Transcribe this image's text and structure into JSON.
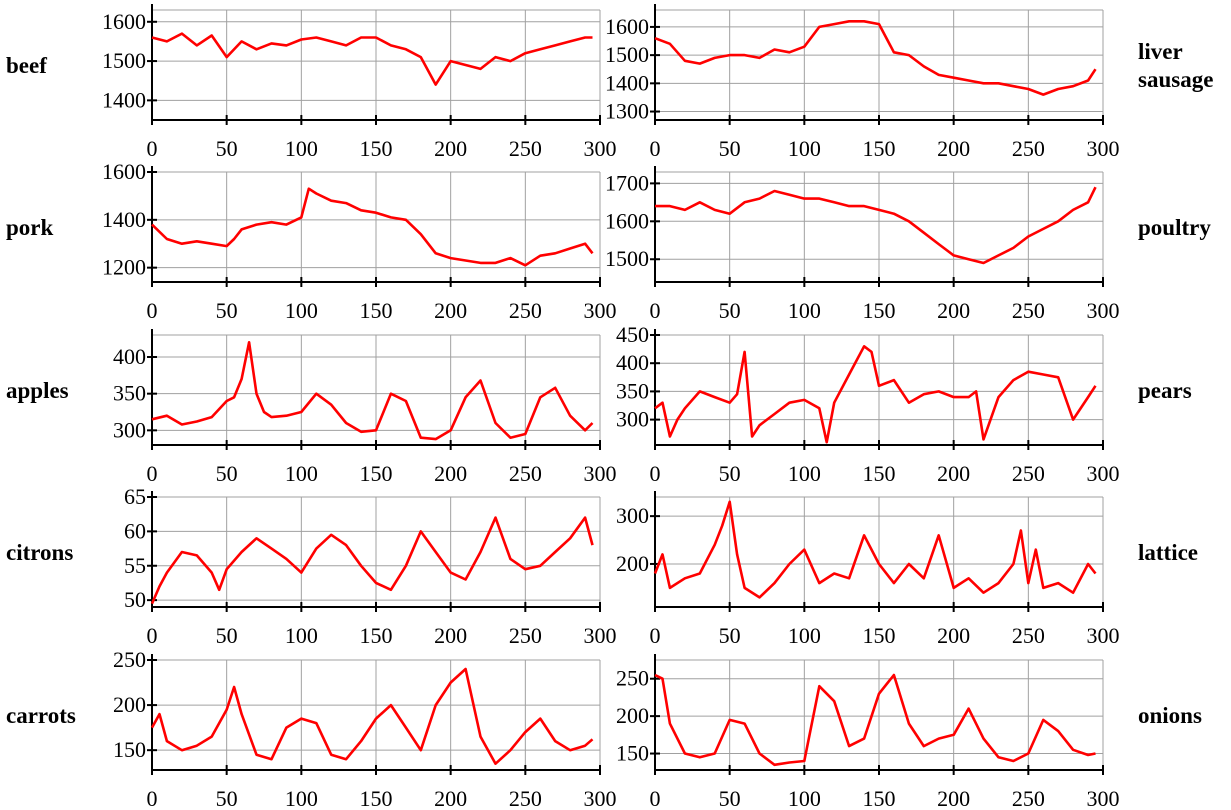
{
  "chart_data": [
    {
      "type": "line",
      "label": "beef",
      "xlim": [
        0,
        300
      ],
      "ylim": [
        1350,
        1630
      ],
      "xticks": [
        0,
        50,
        100,
        150,
        200,
        250,
        300
      ],
      "yticks": [
        1400,
        1500,
        1600
      ],
      "x": [
        0,
        10,
        20,
        30,
        40,
        50,
        60,
        70,
        80,
        90,
        100,
        110,
        120,
        130,
        140,
        150,
        160,
        170,
        180,
        190,
        200,
        210,
        220,
        230,
        240,
        250,
        260,
        270,
        280,
        290,
        295
      ],
      "y": [
        1560,
        1550,
        1570,
        1540,
        1565,
        1510,
        1550,
        1530,
        1545,
        1540,
        1555,
        1560,
        1550,
        1540,
        1560,
        1560,
        1540,
        1530,
        1510,
        1440,
        1500,
        1490,
        1480,
        1510,
        1500,
        1520,
        1530,
        1540,
        1550,
        1560,
        1560
      ]
    },
    {
      "type": "line",
      "label": "liver sausage",
      "xlim": [
        0,
        300
      ],
      "ylim": [
        1270,
        1660
      ],
      "xticks": [
        0,
        50,
        100,
        150,
        200,
        250,
        300
      ],
      "yticks": [
        1300,
        1400,
        1500,
        1600
      ],
      "x": [
        0,
        10,
        20,
        30,
        40,
        50,
        60,
        70,
        80,
        90,
        100,
        110,
        120,
        130,
        140,
        150,
        160,
        170,
        180,
        190,
        200,
        210,
        220,
        230,
        240,
        250,
        260,
        270,
        280,
        290,
        295
      ],
      "y": [
        1560,
        1540,
        1480,
        1470,
        1490,
        1500,
        1500,
        1490,
        1520,
        1510,
        1530,
        1600,
        1610,
        1620,
        1620,
        1610,
        1510,
        1500,
        1460,
        1430,
        1420,
        1410,
        1400,
        1400,
        1390,
        1380,
        1360,
        1380,
        1390,
        1410,
        1450
      ]
    },
    {
      "type": "line",
      "label": "pork",
      "xlim": [
        0,
        300
      ],
      "ylim": [
        1140,
        1600
      ],
      "xticks": [
        0,
        50,
        100,
        150,
        200,
        250,
        300
      ],
      "yticks": [
        1200,
        1400,
        1600
      ],
      "x": [
        0,
        10,
        20,
        30,
        40,
        50,
        55,
        60,
        70,
        80,
        90,
        100,
        105,
        110,
        120,
        130,
        140,
        150,
        160,
        170,
        180,
        190,
        200,
        210,
        220,
        230,
        240,
        250,
        260,
        270,
        280,
        290,
        295
      ],
      "y": [
        1380,
        1320,
        1300,
        1310,
        1300,
        1290,
        1320,
        1360,
        1380,
        1390,
        1380,
        1410,
        1530,
        1510,
        1480,
        1470,
        1440,
        1430,
        1410,
        1400,
        1340,
        1260,
        1240,
        1230,
        1220,
        1220,
        1240,
        1210,
        1250,
        1260,
        1280,
        1300,
        1260
      ]
    },
    {
      "type": "line",
      "label": "poultry",
      "xlim": [
        0,
        300
      ],
      "ylim": [
        1440,
        1730
      ],
      "xticks": [
        0,
        50,
        100,
        150,
        200,
        250,
        300
      ],
      "yticks": [
        1500,
        1600,
        1700
      ],
      "x": [
        0,
        10,
        20,
        30,
        40,
        50,
        60,
        70,
        80,
        90,
        100,
        110,
        120,
        130,
        140,
        150,
        160,
        170,
        180,
        190,
        200,
        210,
        220,
        230,
        240,
        250,
        260,
        270,
        280,
        290,
        295
      ],
      "y": [
        1640,
        1640,
        1630,
        1650,
        1630,
        1620,
        1650,
        1660,
        1680,
        1670,
        1660,
        1660,
        1650,
        1640,
        1640,
        1630,
        1620,
        1600,
        1570,
        1540,
        1510,
        1500,
        1490,
        1510,
        1530,
        1560,
        1580,
        1600,
        1630,
        1650,
        1690
      ]
    },
    {
      "type": "line",
      "label": "apples",
      "xlim": [
        0,
        300
      ],
      "ylim": [
        280,
        430
      ],
      "xticks": [
        0,
        50,
        100,
        150,
        200,
        250,
        300
      ],
      "yticks": [
        300,
        350,
        400
      ],
      "x": [
        0,
        10,
        20,
        30,
        40,
        50,
        55,
        60,
        65,
        70,
        75,
        80,
        90,
        100,
        110,
        120,
        130,
        140,
        150,
        160,
        170,
        180,
        190,
        200,
        210,
        220,
        230,
        240,
        250,
        260,
        270,
        280,
        290,
        295
      ],
      "y": [
        315,
        320,
        308,
        312,
        318,
        340,
        345,
        370,
        420,
        350,
        325,
        318,
        320,
        325,
        350,
        335,
        310,
        298,
        300,
        350,
        340,
        290,
        288,
        300,
        345,
        368,
        310,
        290,
        295,
        345,
        358,
        320,
        300,
        310
      ]
    },
    {
      "type": "line",
      "label": "pears",
      "xlim": [
        0,
        300
      ],
      "ylim": [
        255,
        450
      ],
      "xticks": [
        0,
        50,
        100,
        150,
        200,
        250,
        300
      ],
      "yticks": [
        300,
        350,
        400,
        450
      ],
      "x": [
        0,
        5,
        10,
        15,
        20,
        30,
        40,
        50,
        55,
        60,
        65,
        70,
        80,
        90,
        100,
        110,
        115,
        120,
        130,
        140,
        145,
        150,
        160,
        170,
        180,
        190,
        200,
        210,
        215,
        220,
        230,
        240,
        250,
        260,
        270,
        280,
        290,
        295
      ],
      "y": [
        320,
        330,
        270,
        300,
        320,
        350,
        340,
        330,
        345,
        420,
        270,
        290,
        310,
        330,
        335,
        320,
        260,
        330,
        380,
        430,
        420,
        360,
        370,
        330,
        345,
        350,
        340,
        340,
        350,
        265,
        340,
        370,
        385,
        380,
        375,
        300,
        340,
        360
      ]
    },
    {
      "type": "line",
      "label": "citrons",
      "xlim": [
        0,
        300
      ],
      "ylim": [
        49,
        65
      ],
      "xticks": [
        0,
        50,
        100,
        150,
        200,
        250,
        300
      ],
      "yticks": [
        50,
        55,
        60,
        65
      ],
      "x": [
        0,
        5,
        10,
        20,
        30,
        40,
        45,
        50,
        60,
        70,
        80,
        90,
        100,
        110,
        120,
        130,
        140,
        150,
        160,
        170,
        180,
        190,
        200,
        210,
        220,
        230,
        240,
        250,
        260,
        270,
        280,
        290,
        295
      ],
      "y": [
        49.5,
        52,
        54,
        57,
        56.5,
        54,
        51.5,
        54.5,
        57,
        59,
        57.5,
        56,
        54,
        57.5,
        59.5,
        58,
        55,
        52.5,
        51.5,
        55,
        60,
        57,
        54,
        53,
        57,
        62,
        56,
        54.5,
        55,
        57,
        59,
        62,
        58
      ]
    },
    {
      "type": "line",
      "label": "lattice",
      "xlim": [
        0,
        300
      ],
      "ylim": [
        110,
        340
      ],
      "xticks": [
        0,
        50,
        100,
        150,
        200,
        250,
        300
      ],
      "yticks": [
        200,
        300
      ],
      "x": [
        0,
        5,
        10,
        20,
        30,
        40,
        45,
        50,
        55,
        60,
        70,
        80,
        90,
        100,
        110,
        120,
        130,
        140,
        150,
        160,
        170,
        180,
        190,
        200,
        210,
        220,
        230,
        240,
        245,
        250,
        255,
        260,
        270,
        280,
        290,
        295
      ],
      "y": [
        180,
        220,
        150,
        170,
        180,
        240,
        280,
        330,
        220,
        150,
        130,
        160,
        200,
        230,
        160,
        180,
        170,
        260,
        200,
        160,
        200,
        170,
        260,
        150,
        170,
        140,
        160,
        200,
        270,
        160,
        230,
        150,
        160,
        140,
        200,
        180
      ]
    },
    {
      "type": "line",
      "label": "carrots",
      "xlim": [
        0,
        300
      ],
      "ylim": [
        128,
        250
      ],
      "xticks": [
        0,
        50,
        100,
        150,
        200,
        250,
        300
      ],
      "yticks": [
        150,
        200,
        250
      ],
      "x": [
        0,
        5,
        10,
        20,
        30,
        40,
        50,
        55,
        60,
        70,
        80,
        90,
        100,
        110,
        120,
        130,
        140,
        150,
        160,
        170,
        180,
        190,
        200,
        210,
        220,
        230,
        240,
        250,
        260,
        270,
        280,
        290,
        295
      ],
      "y": [
        175,
        190,
        160,
        150,
        155,
        165,
        195,
        220,
        190,
        145,
        140,
        175,
        185,
        180,
        145,
        140,
        160,
        185,
        200,
        175,
        150,
        200,
        225,
        240,
        165,
        135,
        150,
        170,
        185,
        160,
        150,
        155,
        162
      ]
    },
    {
      "type": "line",
      "label": "onions",
      "xlim": [
        0,
        300
      ],
      "ylim": [
        128,
        275
      ],
      "xticks": [
        0,
        50,
        100,
        150,
        200,
        250,
        300
      ],
      "yticks": [
        150,
        200,
        250
      ],
      "x": [
        0,
        5,
        10,
        20,
        30,
        40,
        50,
        60,
        70,
        80,
        90,
        100,
        110,
        120,
        130,
        140,
        150,
        160,
        170,
        180,
        190,
        200,
        210,
        220,
        230,
        240,
        250,
        260,
        270,
        280,
        290,
        295
      ],
      "y": [
        255,
        250,
        190,
        150,
        145,
        150,
        195,
        190,
        150,
        135,
        138,
        140,
        240,
        220,
        160,
        170,
        230,
        255,
        190,
        160,
        170,
        175,
        210,
        170,
        145,
        140,
        150,
        195,
        180,
        155,
        148,
        150
      ]
    }
  ]
}
